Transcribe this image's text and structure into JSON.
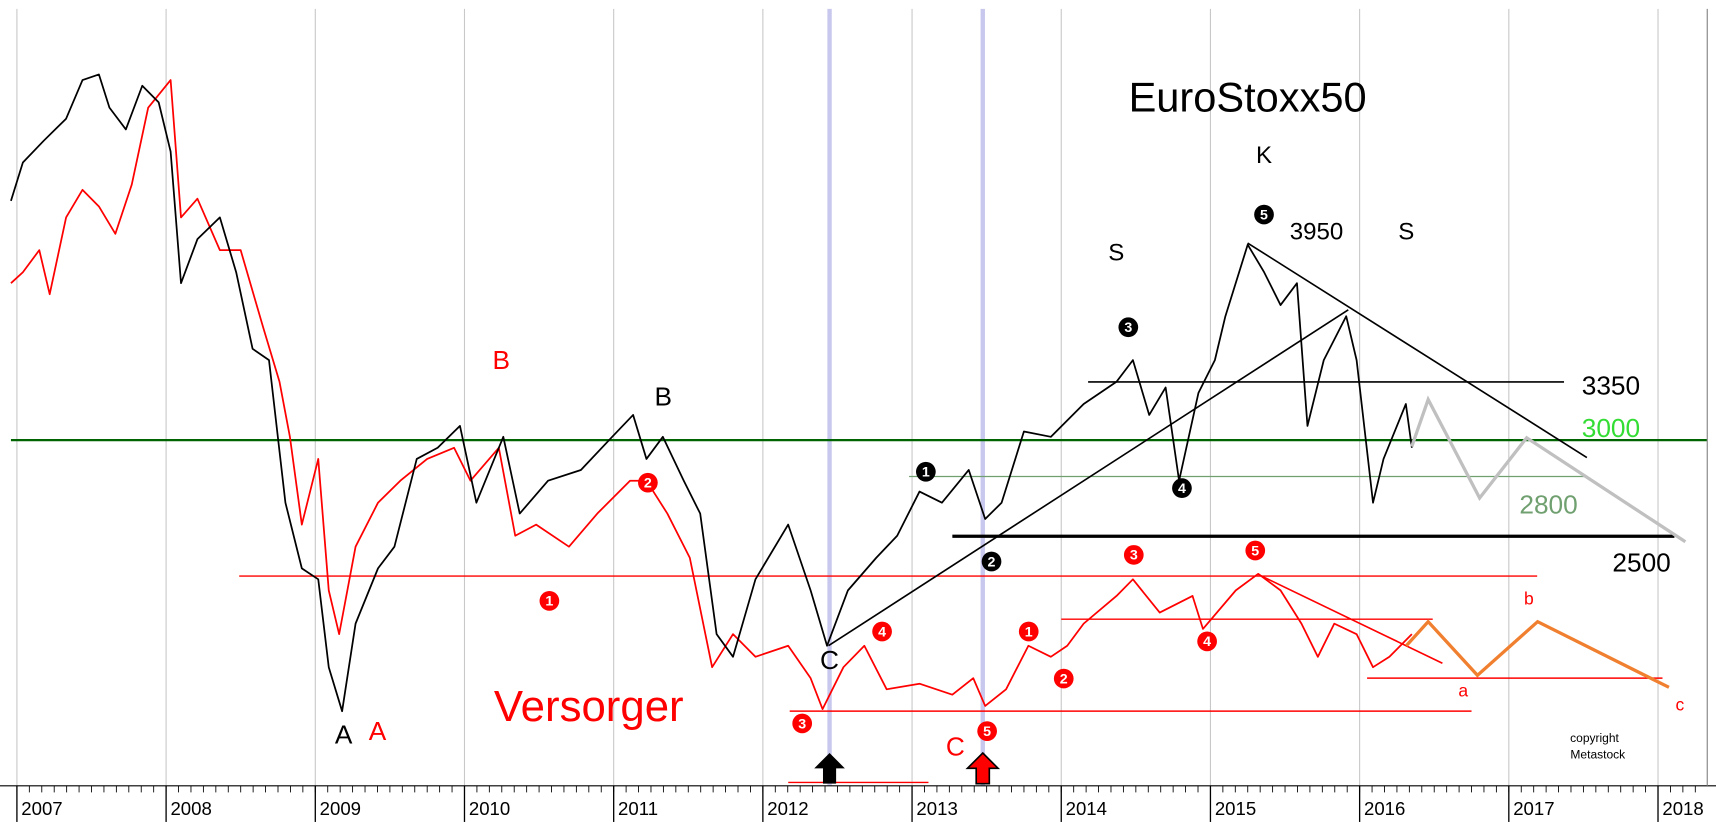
{
  "chart_data": {
    "type": "line",
    "xlim": [
      2006.96,
      2018.33
    ],
    "xticks": [
      2007,
      2008,
      2009,
      2010,
      2011,
      2012,
      2013,
      2014,
      2015,
      2016,
      2017,
      2018
    ],
    "ylim": [
      1557,
      6800
    ],
    "log_scale": true,
    "grid": "x",
    "series": [
      {
        "name": "EuroStoxx50",
        "color": "#000000",
        "x": [
          2006.96,
          2007.04,
          2007.18,
          2007.33,
          2007.44,
          2007.55,
          2007.62,
          2007.73,
          2007.84,
          2007.95,
          2008.03,
          2008.1,
          2008.21,
          2008.36,
          2008.47,
          2008.58,
          2008.69,
          2008.8,
          2008.91,
          2009.02,
          2009.09,
          2009.18,
          2009.27,
          2009.42,
          2009.53,
          2009.68,
          2009.82,
          2009.97,
          2010.08,
          2010.26,
          2010.37,
          2010.56,
          2010.78,
          2010.99,
          2011.13,
          2011.22,
          2011.33,
          2011.47,
          2011.58,
          2011.69,
          2011.8,
          2011.95,
          2012.17,
          2012.32,
          2012.43,
          2012.57,
          2012.76,
          2012.9,
          2013.05,
          2013.2,
          2013.38,
          2013.49,
          2013.6,
          2013.75,
          2013.93,
          2014.15,
          2014.37,
          2014.48,
          2014.59,
          2014.7,
          2014.79,
          2014.92,
          2015.03,
          2015.1,
          2015.25,
          2015.36,
          2015.47,
          2015.58,
          2015.65,
          2015.76,
          2015.91,
          2015.98,
          2016.09,
          2016.16,
          2016.31,
          2016.35
        ],
        "values": [
          4723,
          5080,
          5295,
          5521,
          5940,
          6003,
          5637,
          5409,
          5877,
          5694,
          5187,
          4041,
          4392,
          4578,
          4125,
          3567,
          3492,
          2664,
          2352,
          2304,
          1950,
          1794,
          2118,
          2352,
          2451,
          2895,
          2957,
          3082,
          2664,
          3019,
          2610,
          2778,
          2835,
          3019,
          3147,
          2895,
          3019,
          2778,
          2610,
          2076,
          1989,
          2304,
          2556,
          2256,
          2031,
          2256,
          2400,
          2502,
          2721,
          2664,
          2835,
          2583,
          2664,
          3050,
          3019,
          3213,
          3351,
          3492,
          3147,
          3315,
          2778,
          3282,
          3492,
          3795,
          4347,
          4125,
          3876,
          4041,
          3082,
          3492,
          3795,
          3492,
          2664,
          2895,
          3213,
          2957
        ]
      },
      {
        "name": "Versorger",
        "color": "#ff0000",
        "x": [
          2006.96,
          2007.04,
          2007.15,
          2007.22,
          2007.33,
          2007.44,
          2007.55,
          2007.66,
          2007.77,
          2007.88,
          2008.03,
          2008.1,
          2008.21,
          2008.36,
          2008.5,
          2008.65,
          2008.76,
          2008.83,
          2008.91,
          2009.02,
          2009.09,
          2009.16,
          2009.27,
          2009.42,
          2009.57,
          2009.75,
          2009.93,
          2010.04,
          2010.23,
          2010.34,
          2010.48,
          2010.7,
          2010.89,
          2011.11,
          2011.22,
          2011.36,
          2011.51,
          2011.66,
          2011.8,
          2011.95,
          2012.17,
          2012.32,
          2012.4,
          2012.54,
          2012.68,
          2012.83,
          2013.05,
          2013.27,
          2013.41,
          2013.49,
          2013.63,
          2013.78,
          2013.93,
          2014.04,
          2014.15,
          2014.37,
          2014.48,
          2014.66,
          2014.88,
          2014.95,
          2015.17,
          2015.32,
          2015.47,
          2015.61,
          2015.72,
          2015.83,
          2015.98,
          2016.09,
          2016.2,
          2016.35
        ],
        "values": [
          4041,
          4125,
          4302,
          3957,
          4578,
          4824,
          4674,
          4437,
          4872,
          5637,
          5940,
          4578,
          4743,
          4302,
          4302,
          3717,
          3351,
          3019,
          2556,
          2895,
          2256,
          2076,
          2451,
          2664,
          2778,
          2895,
          2957,
          2778,
          2957,
          2502,
          2556,
          2451,
          2610,
          2778,
          2778,
          2610,
          2400,
          1950,
          2076,
          1989,
          2031,
          1910,
          1801,
          1950,
          2031,
          1870,
          1890,
          1851,
          1910,
          1812,
          1870,
          2031,
          1989,
          2031,
          2118,
          2232,
          2304,
          2163,
          2232,
          2097,
          2256,
          2328,
          2256,
          2118,
          1989,
          2118,
          2076,
          1950,
          1989,
          2076
        ]
      }
    ],
    "levels": [
      {
        "value": 3350,
        "from": 2014.18,
        "to": 2017.37,
        "color": "#000000"
      },
      {
        "value": 3000,
        "from": 2006.96,
        "to": 2018.33,
        "color": "#006400",
        "label_color": "#33dd33"
      },
      {
        "value": 2800,
        "from": 2012.98,
        "to": 2017.52,
        "color": "#70a070"
      },
      {
        "value": 2500,
        "from": 2013.27,
        "to": 2018.11,
        "color": "#000000"
      }
    ],
    "support_lines": [
      {
        "value": 2318,
        "from": 2008.49,
        "to": 2017.19
      },
      {
        "value": 2136,
        "from": 2014.0,
        "to": 2016.49
      },
      {
        "value": 1910,
        "from": 2016.05,
        "to": 2018.03
      },
      {
        "value": 1794,
        "from": 2012.18,
        "to": 2016.75
      },
      {
        "value": 1567,
        "from": 2012.17,
        "to": 2013.11
      }
    ],
    "wave_labels": [
      {
        "text": "K",
        "color": "#000000"
      },
      {
        "text": "S",
        "color": "#000000"
      },
      {
        "text": "S",
        "color": "#000000"
      },
      {
        "text": "3950",
        "color": "#000000"
      },
      {
        "text": "B",
        "color": "#000000"
      },
      {
        "text": "A",
        "color": "#000000"
      },
      {
        "text": "C",
        "color": "#000000"
      },
      {
        "text": "B",
        "color": "#ff0000"
      },
      {
        "text": "A",
        "color": "#ff0000"
      },
      {
        "text": "C",
        "color": "#ff0000"
      },
      {
        "text": "a",
        "color": "#ff0000"
      },
      {
        "text": "b",
        "color": "#ff0000"
      },
      {
        "text": "c",
        "color": "#ff0000"
      }
    ],
    "wave_counts": [
      {
        "text": "5",
        "color": "#000000"
      },
      {
        "text": "3",
        "color": "#000000"
      },
      {
        "text": "1",
        "color": "#000000"
      },
      {
        "text": "4",
        "color": "#000000"
      },
      {
        "text": "2",
        "color": "#000000"
      },
      {
        "text": "1",
        "color": "#ff0000"
      },
      {
        "text": "1",
        "color": "#ff0000"
      },
      {
        "text": "2",
        "color": "#ff0000"
      },
      {
        "text": "2",
        "color": "#ff0000"
      },
      {
        "text": "3",
        "color": "#ff0000"
      },
      {
        "text": "3",
        "color": "#ff0000"
      },
      {
        "text": "4",
        "color": "#ff0000"
      },
      {
        "text": "4",
        "color": "#ff0000"
      },
      {
        "text": "5",
        "color": "#ff0000"
      },
      {
        "text": "5",
        "color": "#ff0000"
      }
    ],
    "copyright": "copyright",
    "source": "Metastock"
  }
}
